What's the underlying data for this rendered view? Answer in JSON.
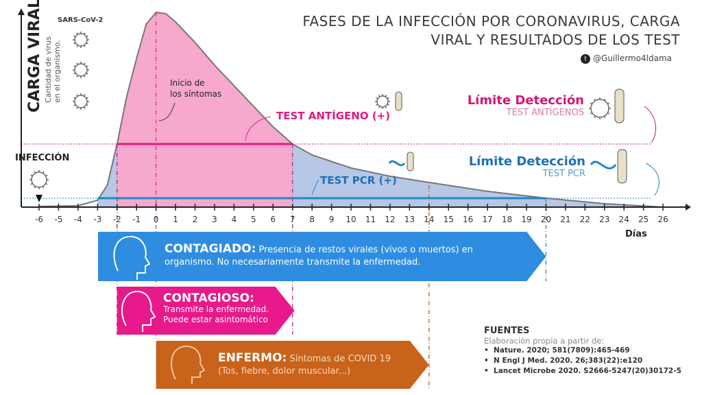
{
  "title_line1": "FASES DE LA INFECCIÓN POR CORONAVIRUS, CARGA",
  "title_line2": "VIRAL Y RESULTADOS DE LOS TEST",
  "handle": "@Guillermo4ldama",
  "handle_icon": "twitter-icon",
  "y_axis": {
    "label": "CARGA VIRAL",
    "sublabel_line1": "Cantidad de virus",
    "sublabel_line2": "en el organismo."
  },
  "virus_label": "SARS-CoV-2",
  "infection_label": "INFECCIÓN",
  "symptom_onset_label_line1": "Inicio de",
  "symptom_onset_label_line2": "los síntomas",
  "antigen_positive": "TEST ANTÍGENO (+)",
  "pcr_positive": "TEST PCR (+)",
  "antigen_limit": {
    "title": "Límite Detección",
    "subtitle": "TEST ANTÍGENOS"
  },
  "pcr_limit": {
    "title": "Límite Detección",
    "subtitle": "TEST PCR"
  },
  "x_axis": {
    "label": "Días",
    "ticks": [
      -6,
      -5,
      -4,
      -3,
      -2,
      -1,
      0,
      1,
      2,
      3,
      4,
      5,
      6,
      7,
      8,
      9,
      10,
      11,
      12,
      13,
      14,
      15,
      16,
      17,
      18,
      19,
      20,
      21,
      22,
      23,
      24,
      25,
      26
    ]
  },
  "colors": {
    "antigen": "#e4197d",
    "pcr": "#1e88c9",
    "contagiado": "#2e8de0",
    "contagioso": "#e8198b",
    "enfermo": "#c9621a",
    "pink_fill": "#f7a8cd",
    "blue_fill": "#b7c7e6"
  },
  "intervals": {
    "infection_day": -6,
    "symptom_onset_day": 0,
    "pcr_positive_days": [
      -3,
      20
    ],
    "antigen_positive_days": [
      -2,
      7
    ],
    "contagioso_days": [
      -2,
      7
    ],
    "enfermo_days": [
      0,
      14
    ]
  },
  "phases": {
    "contagiado": {
      "title": "CONTAGIADO:",
      "text_line1": "Presencia de restos virales (vivos o muertos) en",
      "text_line2": "organismo. No necesariamente transmite la enfermedad."
    },
    "contagioso": {
      "title": "CONTAGIOSO:",
      "text_line1": "Transmite la enfermedad.",
      "text_line2": "Puede estar asintomático"
    },
    "enfermo": {
      "title": "ENFERMO:",
      "text_line1": "Síntomas de COVID 19",
      "text_line2": "(Tos, fiebre, dolor muscular...)"
    }
  },
  "sources": {
    "heading": "FUENTES",
    "intro": "Elaboración propia a partir de:",
    "items": [
      "Nature. 2020; 581(7809):465-469",
      "N Engl J Med. 2020. 26;383(22):e120",
      "Lancet Microbe 2020. S2666-5247(20)30172-5"
    ]
  }
}
